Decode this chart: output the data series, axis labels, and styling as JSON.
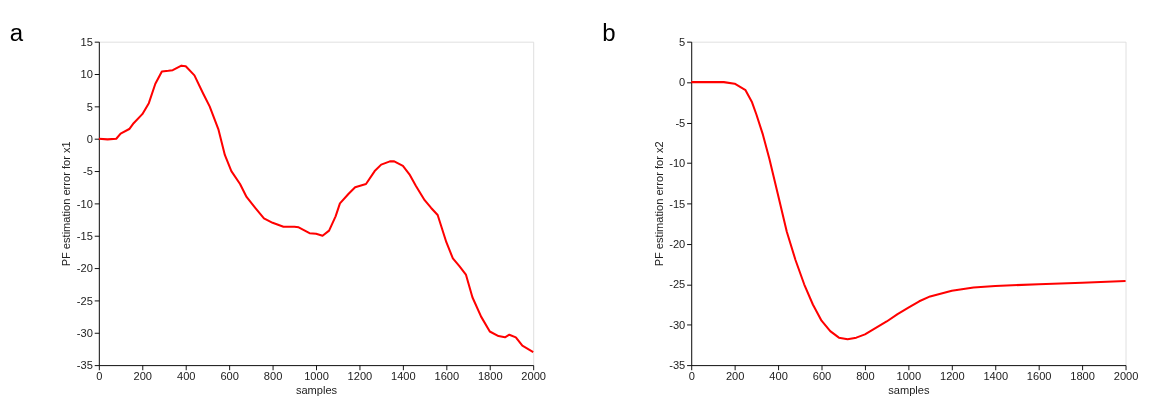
{
  "chart_data": [
    {
      "type": "line",
      "title": "a",
      "xlabel": "samples",
      "ylabel": "PF estimation error for x1",
      "xlim": [
        0,
        2000
      ],
      "ylim": [
        -35,
        15
      ],
      "xticks": [
        0,
        200,
        400,
        600,
        800,
        1000,
        1200,
        1400,
        1600,
        1800,
        2000
      ],
      "yticks": [
        -35,
        -30,
        -25,
        -20,
        -15,
        -10,
        -5,
        0,
        5,
        10,
        15
      ],
      "grid": false,
      "x": [
        0,
        40,
        80,
        100,
        140,
        160,
        200,
        230,
        260,
        290,
        320,
        340,
        380,
        400,
        440,
        480,
        510,
        550,
        580,
        610,
        650,
        680,
        720,
        760,
        800,
        850,
        900,
        920,
        970,
        1000,
        1030,
        1060,
        1090,
        1110,
        1150,
        1180,
        1230,
        1270,
        1300,
        1340,
        1360,
        1400,
        1430,
        1460,
        1500,
        1530,
        1560,
        1600,
        1630,
        1660,
        1690,
        1720,
        1760,
        1800,
        1840,
        1870,
        1890,
        1920,
        1950,
        2000
      ],
      "series": [
        {
          "color": "#ff0000",
          "values": [
            0,
            -0.1,
            0,
            0.8,
            1.5,
            2.4,
            3.8,
            5.5,
            8.5,
            10.4,
            10.5,
            10.6,
            11.3,
            11.2,
            9.8,
            7,
            5,
            1.5,
            -2.5,
            -5,
            -7,
            -9,
            -10.7,
            -12.3,
            -13,
            -13.6,
            -13.6,
            -13.7,
            -14.6,
            -14.7,
            -15,
            -14.2,
            -12,
            -10,
            -8.5,
            -7.5,
            -7,
            -5,
            -4,
            -3.5,
            -3.5,
            -4.2,
            -5.5,
            -7.3,
            -9.5,
            -10.7,
            -11.8,
            -16,
            -18.5,
            -19.7,
            -21,
            -24.5,
            -27.5,
            -29.8,
            -30.5,
            -30.7,
            -30.3,
            -30.7,
            -32,
            -33
          ]
        }
      ]
    },
    {
      "type": "line",
      "title": "b",
      "xlabel": "samples",
      "ylabel": "PF estimation error for x2",
      "xlim": [
        0,
        2000
      ],
      "ylim": [
        -35,
        5
      ],
      "xticks": [
        0,
        200,
        400,
        600,
        800,
        1000,
        1200,
        1400,
        1600,
        1800,
        2000
      ],
      "yticks": [
        -35,
        -30,
        -25,
        -20,
        -15,
        -10,
        -5,
        0,
        5
      ],
      "grid": false,
      "x": [
        0,
        150,
        200,
        250,
        280,
        300,
        330,
        360,
        400,
        440,
        480,
        520,
        560,
        600,
        640,
        680,
        720,
        760,
        800,
        850,
        900,
        950,
        1000,
        1050,
        1100,
        1200,
        1300,
        1400,
        1600,
        1800,
        2000
      ],
      "series": [
        {
          "color": "#ff0000",
          "values": [
            0,
            0,
            -0.2,
            -1,
            -2.5,
            -4,
            -6.5,
            -9.5,
            -14,
            -18.5,
            -22,
            -25,
            -27.5,
            -29.5,
            -30.8,
            -31.6,
            -31.8,
            -31.6,
            -31.2,
            -30.4,
            -29.6,
            -28.7,
            -27.9,
            -27.1,
            -26.5,
            -25.8,
            -25.4,
            -25.2,
            -25,
            -24.8,
            -24.6
          ]
        }
      ]
    }
  ]
}
